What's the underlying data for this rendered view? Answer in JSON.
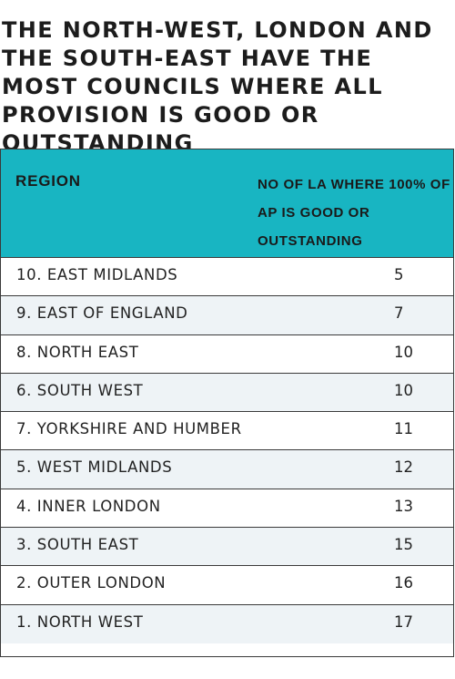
{
  "headline": "THE NORTH-WEST, LONDON AND THE SOUTH-EAST HAVE THE MOST COUNCILS WHERE ALL PROVISION IS GOOD OR OUTSTANDING",
  "colors": {
    "header_fill": "#18b5c2",
    "row_alt_fill": "#eef3f6",
    "border": "#3a3a3a"
  },
  "chart_data": {
    "type": "table",
    "columns": [
      "REGION",
      "NO OF LA WHERE 100% OF AP IS GOOD OR OUTSTANDING"
    ],
    "rows": [
      {
        "region": "10. EAST MIDLANDS",
        "count": 5
      },
      {
        "region": "9. EAST OF ENGLAND",
        "count": 7
      },
      {
        "region": "8. NORTH EAST",
        "count": 10
      },
      {
        "region": "6. SOUTH WEST",
        "count": 10
      },
      {
        "region": "7. YORKSHIRE AND HUMBER",
        "count": 11
      },
      {
        "region": "5. WEST MIDLANDS",
        "count": 12
      },
      {
        "region": "4. INNER LONDON",
        "count": 13
      },
      {
        "region": "3. SOUTH EAST",
        "count": 15
      },
      {
        "region": "2. OUTER LONDON",
        "count": 16
      },
      {
        "region": "1. NORTH WEST",
        "count": 17
      }
    ]
  }
}
